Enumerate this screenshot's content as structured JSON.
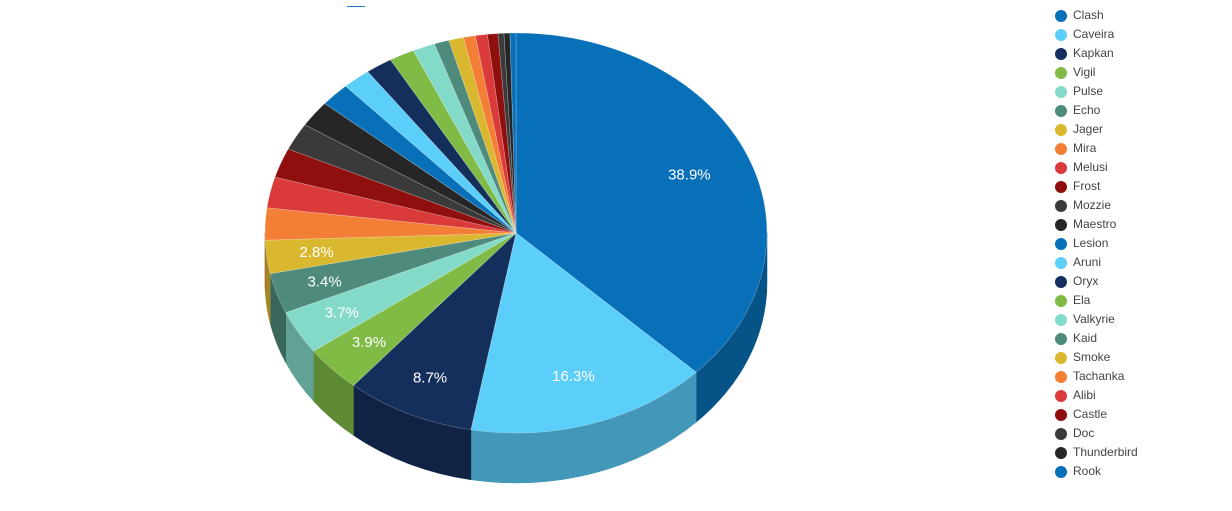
{
  "chart_data": {
    "type": "pie",
    "categories": [
      "Clash",
      "Caveira",
      "Kapkan",
      "Vigil",
      "Pulse",
      "Echo",
      "Jager",
      "Mira",
      "Melusi",
      "Frost",
      "Mozzie",
      "Maestro",
      "Lesion",
      "Aruni",
      "Oryx",
      "Ela",
      "Valkyrie",
      "Kaid",
      "Smoke",
      "Tachanka",
      "Alibi",
      "Castle",
      "Doc",
      "Thunderbird",
      "Rook"
    ],
    "values": [
      38.9,
      16.3,
      8.7,
      3.9,
      3.7,
      3.4,
      2.8,
      2.7,
      2.6,
      2.5,
      2.3,
      2.2,
      2.0,
      1.9,
      1.8,
      1.7,
      1.5,
      1.0,
      1.0,
      0.8,
      0.8,
      0.7,
      0.4,
      0.4,
      0.4
    ],
    "value_labels": [
      "38.9%",
      "16.3%",
      "8.7%",
      "3.9%",
      "3.7%",
      "3.4%",
      "2.8%",
      "",
      "",
      "",
      "",
      "",
      "",
      "",
      "",
      "",
      "",
      "",
      "",
      "",
      "",
      "",
      "",
      "",
      ""
    ],
    "colors": [
      "#0870b8",
      "#5bcefa",
      "#152f5c",
      "#7fbb45",
      "#84dac9",
      "#4e8b7c",
      "#d9b830",
      "#f27f35",
      "#db3a3a",
      "#8f0f0f",
      "#3a3a3a",
      "#262626",
      "#0870b8",
      "#5bcefa",
      "#152f5c",
      "#7fbb45",
      "#84dac9",
      "#4e8b7c",
      "#d9b830",
      "#f27f35",
      "#db3a3a",
      "#8f0f0f",
      "#3a3a3a",
      "#262626",
      "#0870b8"
    ],
    "legend_position": "right",
    "style": "3d"
  }
}
